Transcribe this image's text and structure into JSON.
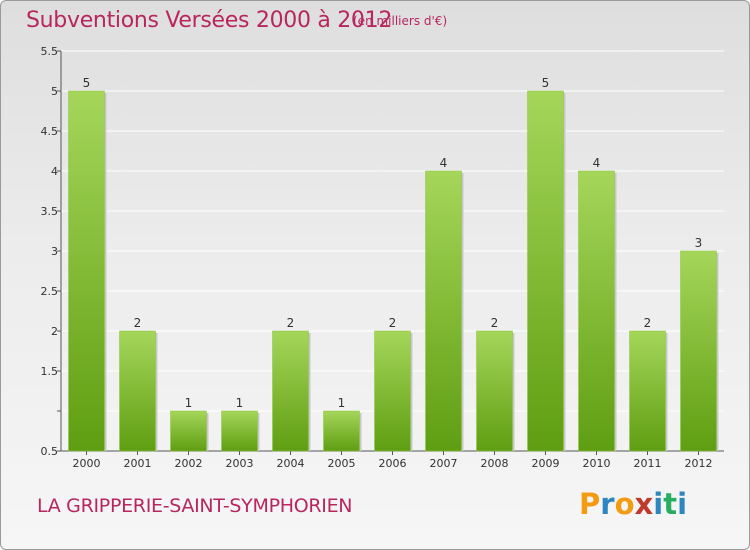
{
  "title": "Subventions Versées 2000 à 2012",
  "unit": "(en milliers d'€)",
  "place": "LA GRIPPERIE-SAINT-SYMPHORIEN",
  "logo": {
    "letters": [
      "P",
      "r",
      "o",
      "x",
      "i",
      "t",
      "i"
    ],
    "colors": [
      "#f39c12",
      "#2e86c1",
      "#f39c12",
      "#c0392b",
      "#2e86c1",
      "#27ae60",
      "#2e86c1"
    ]
  },
  "colors": {
    "bar_light": "#a5d65a",
    "bar_dark": "#5f9e12",
    "title": "#b8265e"
  },
  "chart_data": {
    "type": "bar",
    "title": "Subventions Versées 2000 à 2012",
    "categories": [
      "2000",
      "2001",
      "2002",
      "2003",
      "2004",
      "2005",
      "2006",
      "2007",
      "2008",
      "2009",
      "2010",
      "2011",
      "2012"
    ],
    "values": [
      5,
      2,
      1,
      1,
      2,
      1,
      2,
      4,
      2,
      5,
      4,
      2,
      3
    ],
    "value_labels": [
      "5",
      "2",
      "1",
      "1",
      "2",
      "1",
      "2",
      "4",
      "2",
      "5",
      "4",
      "2",
      "3"
    ],
    "ylim": [
      0.5,
      5.5
    ],
    "yticks": [
      0.5,
      1,
      1.5,
      2,
      2.5,
      3,
      3.5,
      4,
      4.5,
      5,
      5.5
    ],
    "ytick_labels": [
      "0.5",
      "",
      "1.5",
      "2",
      "2.5",
      "3",
      "3.5",
      "4",
      "4.5",
      "5",
      "5.5"
    ],
    "grid": true
  }
}
